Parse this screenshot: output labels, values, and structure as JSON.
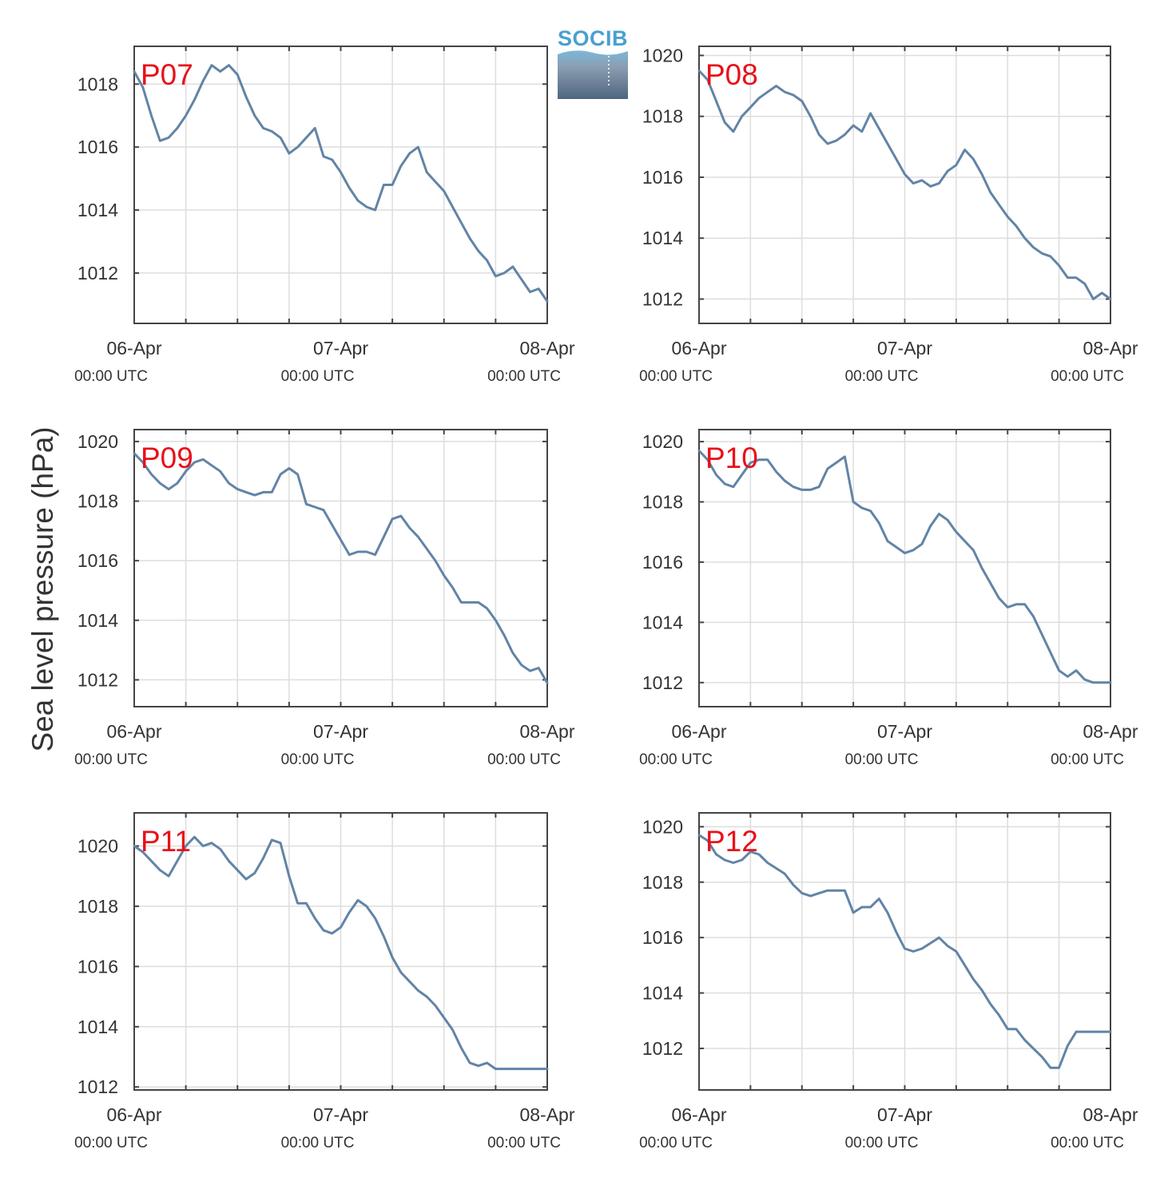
{
  "figure": {
    "ylabel": "Sea level pressure (hPa)",
    "logo_text": "SOCIB"
  },
  "colors": {
    "series": "#6284a6",
    "panel_label": "#e8101a",
    "grid": "#dddddd",
    "axes": "#444444",
    "text": "#333333"
  },
  "chart_data": [
    {
      "type": "line",
      "label": "P07",
      "x": [
        "06-Apr 00:00",
        "06-Apr 01:00",
        "06-Apr 02:00",
        "06-Apr 03:00",
        "06-Apr 04:00",
        "06-Apr 05:00",
        "06-Apr 06:00",
        "06-Apr 07:00",
        "06-Apr 08:00",
        "06-Apr 09:00",
        "06-Apr 10:00",
        "06-Apr 11:00",
        "06-Apr 12:00",
        "06-Apr 13:00",
        "06-Apr 14:00",
        "06-Apr 15:00",
        "06-Apr 16:00",
        "06-Apr 17:00",
        "06-Apr 18:00",
        "06-Apr 19:00",
        "06-Apr 20:00",
        "06-Apr 21:00",
        "06-Apr 22:00",
        "06-Apr 23:00",
        "07-Apr 00:00",
        "07-Apr 01:00",
        "07-Apr 02:00",
        "07-Apr 03:00",
        "07-Apr 04:00",
        "07-Apr 05:00",
        "07-Apr 06:00",
        "07-Apr 07:00",
        "07-Apr 08:00",
        "07-Apr 09:00",
        "07-Apr 10:00",
        "07-Apr 11:00",
        "07-Apr 12:00",
        "07-Apr 13:00",
        "07-Apr 14:00",
        "07-Apr 15:00",
        "07-Apr 16:00",
        "07-Apr 17:00",
        "07-Apr 18:00",
        "07-Apr 19:00",
        "07-Apr 20:00",
        "07-Apr 21:00",
        "07-Apr 22:00",
        "07-Apr 23:00",
        "08-Apr 00:00"
      ],
      "y": [
        1018.4,
        1017.9,
        1017.0,
        1016.2,
        1016.3,
        1016.6,
        1017.0,
        1017.5,
        1018.1,
        1018.6,
        1018.4,
        1018.6,
        1018.3,
        1017.6,
        1017.0,
        1016.6,
        1016.5,
        1016.3,
        1015.8,
        1016.0,
        1016.3,
        1016.6,
        1015.7,
        1015.6,
        1015.2,
        1014.7,
        1014.3,
        1014.1,
        1014.0,
        1014.8,
        1014.8,
        1015.4,
        1015.8,
        1016.0,
        1015.2,
        1014.9,
        1014.6,
        1014.1,
        1013.6,
        1013.1,
        1012.7,
        1012.4,
        1011.9,
        1012.0,
        1012.2,
        1011.8,
        1011.4,
        1011.5,
        1011.1
      ],
      "ylim": [
        1010.4,
        1019.2
      ],
      "yticks": [
        "1012",
        "1014",
        "1016",
        "1018"
      ],
      "xticks": [
        {
          "date": "06-Apr",
          "time": "00:00 UTC"
        },
        {
          "date": "07-Apr",
          "time": "00:00 UTC"
        },
        {
          "date": "08-Apr",
          "time": "00:00 UTC"
        }
      ],
      "grid": true
    },
    {
      "type": "line",
      "label": "P08",
      "x": [
        "06-Apr 00:00",
        "06-Apr 01:00",
        "06-Apr 02:00",
        "06-Apr 03:00",
        "06-Apr 04:00",
        "06-Apr 05:00",
        "06-Apr 06:00",
        "06-Apr 07:00",
        "06-Apr 08:00",
        "06-Apr 09:00",
        "06-Apr 10:00",
        "06-Apr 11:00",
        "06-Apr 12:00",
        "06-Apr 13:00",
        "06-Apr 14:00",
        "06-Apr 15:00",
        "06-Apr 16:00",
        "06-Apr 17:00",
        "06-Apr 18:00",
        "06-Apr 19:00",
        "06-Apr 20:00",
        "06-Apr 21:00",
        "06-Apr 22:00",
        "06-Apr 23:00",
        "07-Apr 00:00",
        "07-Apr 01:00",
        "07-Apr 02:00",
        "07-Apr 03:00",
        "07-Apr 04:00",
        "07-Apr 05:00",
        "07-Apr 06:00",
        "07-Apr 07:00",
        "07-Apr 08:00",
        "07-Apr 09:00",
        "07-Apr 10:00",
        "07-Apr 11:00",
        "07-Apr 12:00",
        "07-Apr 13:00",
        "07-Apr 14:00",
        "07-Apr 15:00",
        "07-Apr 16:00",
        "07-Apr 17:00",
        "07-Apr 18:00",
        "07-Apr 19:00",
        "07-Apr 20:00",
        "07-Apr 21:00",
        "07-Apr 22:00",
        "07-Apr 23:00",
        "08-Apr 00:00"
      ],
      "y": [
        1019.5,
        1019.2,
        1018.5,
        1017.8,
        1017.5,
        1018.0,
        1018.3,
        1018.6,
        1018.8,
        1019.0,
        1018.8,
        1018.7,
        1018.5,
        1018.0,
        1017.4,
        1017.1,
        1017.2,
        1017.4,
        1017.7,
        1017.5,
        1018.1,
        1017.6,
        1017.1,
        1016.6,
        1016.1,
        1015.8,
        1015.9,
        1015.7,
        1015.8,
        1016.2,
        1016.4,
        1016.9,
        1016.6,
        1016.1,
        1015.5,
        1015.1,
        1014.7,
        1014.4,
        1014.0,
        1013.7,
        1013.5,
        1013.4,
        1013.1,
        1012.7,
        1012.7,
        1012.5,
        1012.0,
        1012.2,
        1012.0
      ],
      "ylim": [
        1011.2,
        1020.3
      ],
      "yticks": [
        "1012",
        "1014",
        "1016",
        "1018",
        "1020"
      ],
      "xticks": [
        {
          "date": "06-Apr",
          "time": "00:00 UTC"
        },
        {
          "date": "07-Apr",
          "time": "00:00 UTC"
        },
        {
          "date": "08-Apr",
          "time": "00:00 UTC"
        }
      ],
      "grid": true
    },
    {
      "type": "line",
      "label": "P09",
      "x": [
        "06-Apr 00:00",
        "06-Apr 01:00",
        "06-Apr 02:00",
        "06-Apr 03:00",
        "06-Apr 04:00",
        "06-Apr 05:00",
        "06-Apr 06:00",
        "06-Apr 07:00",
        "06-Apr 08:00",
        "06-Apr 09:00",
        "06-Apr 10:00",
        "06-Apr 11:00",
        "06-Apr 12:00",
        "06-Apr 13:00",
        "06-Apr 14:00",
        "06-Apr 15:00",
        "06-Apr 16:00",
        "06-Apr 17:00",
        "06-Apr 18:00",
        "06-Apr 19:00",
        "06-Apr 20:00",
        "06-Apr 21:00",
        "06-Apr 22:00",
        "06-Apr 23:00",
        "07-Apr 00:00",
        "07-Apr 01:00",
        "07-Apr 02:00",
        "07-Apr 03:00",
        "07-Apr 04:00",
        "07-Apr 05:00",
        "07-Apr 06:00",
        "07-Apr 07:00",
        "07-Apr 08:00",
        "07-Apr 09:00",
        "07-Apr 10:00",
        "07-Apr 11:00",
        "07-Apr 12:00",
        "07-Apr 13:00",
        "07-Apr 14:00",
        "07-Apr 15:00",
        "07-Apr 16:00",
        "07-Apr 17:00",
        "07-Apr 18:00",
        "07-Apr 19:00",
        "07-Apr 20:00",
        "07-Apr 21:00",
        "07-Apr 22:00",
        "07-Apr 23:00",
        "08-Apr 00:00"
      ],
      "y": [
        1019.6,
        1019.3,
        1018.9,
        1018.6,
        1018.4,
        1018.6,
        1019.0,
        1019.3,
        1019.4,
        1019.2,
        1019.0,
        1018.6,
        1018.4,
        1018.3,
        1018.2,
        1018.3,
        1018.3,
        1018.9,
        1019.1,
        1018.9,
        1017.9,
        1017.8,
        1017.7,
        1017.2,
        1016.7,
        1016.2,
        1016.3,
        1016.3,
        1016.2,
        1016.8,
        1017.4,
        1017.5,
        1017.1,
        1016.8,
        1016.4,
        1016.0,
        1015.5,
        1015.1,
        1014.6,
        1014.6,
        1014.6,
        1014.4,
        1014.0,
        1013.5,
        1012.9,
        1012.5,
        1012.3,
        1012.4,
        1011.9
      ],
      "ylim": [
        1011.1,
        1020.4
      ],
      "yticks": [
        "1012",
        "1014",
        "1016",
        "1018",
        "1020"
      ],
      "xticks": [
        {
          "date": "06-Apr",
          "time": "00:00 UTC"
        },
        {
          "date": "07-Apr",
          "time": "00:00 UTC"
        },
        {
          "date": "08-Apr",
          "time": "00:00 UTC"
        }
      ],
      "grid": true
    },
    {
      "type": "line",
      "label": "P10",
      "x": [
        "06-Apr 00:00",
        "06-Apr 01:00",
        "06-Apr 02:00",
        "06-Apr 03:00",
        "06-Apr 04:00",
        "06-Apr 05:00",
        "06-Apr 06:00",
        "06-Apr 07:00",
        "06-Apr 08:00",
        "06-Apr 09:00",
        "06-Apr 10:00",
        "06-Apr 11:00",
        "06-Apr 12:00",
        "06-Apr 13:00",
        "06-Apr 14:00",
        "06-Apr 15:00",
        "06-Apr 16:00",
        "06-Apr 17:00",
        "06-Apr 18:00",
        "06-Apr 19:00",
        "06-Apr 20:00",
        "06-Apr 21:00",
        "06-Apr 22:00",
        "06-Apr 23:00",
        "07-Apr 00:00",
        "07-Apr 01:00",
        "07-Apr 02:00",
        "07-Apr 03:00",
        "07-Apr 04:00",
        "07-Apr 05:00",
        "07-Apr 06:00",
        "07-Apr 07:00",
        "07-Apr 08:00",
        "07-Apr 09:00",
        "07-Apr 10:00",
        "07-Apr 11:00",
        "07-Apr 12:00",
        "07-Apr 13:00",
        "07-Apr 14:00",
        "07-Apr 15:00",
        "07-Apr 16:00",
        "07-Apr 17:00",
        "07-Apr 18:00",
        "07-Apr 19:00",
        "07-Apr 20:00",
        "07-Apr 21:00",
        "07-Apr 22:00",
        "07-Apr 23:00",
        "08-Apr 00:00"
      ],
      "y": [
        1019.7,
        1019.4,
        1018.9,
        1018.6,
        1018.5,
        1018.9,
        1019.3,
        1019.4,
        1019.4,
        1019.0,
        1018.7,
        1018.5,
        1018.4,
        1018.4,
        1018.5,
        1019.1,
        1019.3,
        1019.5,
        1018.0,
        1017.8,
        1017.7,
        1017.3,
        1016.7,
        1016.5,
        1016.3,
        1016.4,
        1016.6,
        1017.2,
        1017.6,
        1017.4,
        1017.0,
        1016.7,
        1016.4,
        1015.8,
        1015.3,
        1014.8,
        1014.5,
        1014.6,
        1014.6,
        1014.2,
        1013.6,
        1013.0,
        1012.4,
        1012.2,
        1012.4,
        1012.1,
        1012.0,
        1012.0,
        1012.0
      ],
      "ylim": [
        1011.2,
        1020.4
      ],
      "yticks": [
        "1012",
        "1014",
        "1016",
        "1018",
        "1020"
      ],
      "xticks": [
        {
          "date": "06-Apr",
          "time": "00:00 UTC"
        },
        {
          "date": "07-Apr",
          "time": "00:00 UTC"
        },
        {
          "date": "08-Apr",
          "time": "00:00 UTC"
        }
      ],
      "grid": true
    },
    {
      "type": "line",
      "label": "P11",
      "x": [
        "06-Apr 00:00",
        "06-Apr 01:00",
        "06-Apr 02:00",
        "06-Apr 03:00",
        "06-Apr 04:00",
        "06-Apr 05:00",
        "06-Apr 06:00",
        "06-Apr 07:00",
        "06-Apr 08:00",
        "06-Apr 09:00",
        "06-Apr 10:00",
        "06-Apr 11:00",
        "06-Apr 12:00",
        "06-Apr 13:00",
        "06-Apr 14:00",
        "06-Apr 15:00",
        "06-Apr 16:00",
        "06-Apr 17:00",
        "06-Apr 18:00",
        "06-Apr 19:00",
        "06-Apr 20:00",
        "06-Apr 21:00",
        "06-Apr 22:00",
        "06-Apr 23:00",
        "07-Apr 00:00",
        "07-Apr 01:00",
        "07-Apr 02:00",
        "07-Apr 03:00",
        "07-Apr 04:00",
        "07-Apr 05:00",
        "07-Apr 06:00",
        "07-Apr 07:00",
        "07-Apr 08:00",
        "07-Apr 09:00",
        "07-Apr 10:00",
        "07-Apr 11:00",
        "07-Apr 12:00",
        "07-Apr 13:00",
        "07-Apr 14:00",
        "07-Apr 15:00",
        "07-Apr 16:00",
        "07-Apr 17:00",
        "07-Apr 18:00",
        "07-Apr 19:00",
        "07-Apr 20:00",
        "07-Apr 21:00",
        "07-Apr 22:00",
        "07-Apr 23:00",
        "08-Apr 00:00"
      ],
      "y": [
        1020.0,
        1019.8,
        1019.5,
        1019.2,
        1019.0,
        1019.5,
        1020.0,
        1020.3,
        1020.0,
        1020.1,
        1019.9,
        1019.5,
        1019.2,
        1018.9,
        1019.1,
        1019.6,
        1020.2,
        1020.1,
        1019.0,
        1018.1,
        1018.1,
        1017.6,
        1017.2,
        1017.1,
        1017.3,
        1017.8,
        1018.2,
        1018.0,
        1017.6,
        1017.0,
        1016.3,
        1015.8,
        1015.5,
        1015.2,
        1015.0,
        1014.7,
        1014.3,
        1013.9,
        1013.3,
        1012.8,
        1012.7,
        1012.8,
        1012.6,
        1012.6,
        1012.6,
        1012.6,
        1012.6,
        1012.6,
        1012.6
      ],
      "ylim": [
        1011.9,
        1021.1
      ],
      "yticks": [
        "1012",
        "1014",
        "1016",
        "1018",
        "1020"
      ],
      "xticks": [
        {
          "date": "06-Apr",
          "time": "00:00 UTC"
        },
        {
          "date": "07-Apr",
          "time": "00:00 UTC"
        },
        {
          "date": "08-Apr",
          "time": "00:00 UTC"
        }
      ],
      "grid": true
    },
    {
      "type": "line",
      "label": "P12",
      "x": [
        "06-Apr 00:00",
        "06-Apr 01:00",
        "06-Apr 02:00",
        "06-Apr 03:00",
        "06-Apr 04:00",
        "06-Apr 05:00",
        "06-Apr 06:00",
        "06-Apr 07:00",
        "06-Apr 08:00",
        "06-Apr 09:00",
        "06-Apr 10:00",
        "06-Apr 11:00",
        "06-Apr 12:00",
        "06-Apr 13:00",
        "06-Apr 14:00",
        "06-Apr 15:00",
        "06-Apr 16:00",
        "06-Apr 17:00",
        "06-Apr 18:00",
        "06-Apr 19:00",
        "06-Apr 20:00",
        "06-Apr 21:00",
        "06-Apr 22:00",
        "06-Apr 23:00",
        "07-Apr 00:00",
        "07-Apr 01:00",
        "07-Apr 02:00",
        "07-Apr 03:00",
        "07-Apr 04:00",
        "07-Apr 05:00",
        "07-Apr 06:00",
        "07-Apr 07:00",
        "07-Apr 08:00",
        "07-Apr 09:00",
        "07-Apr 10:00",
        "07-Apr 11:00",
        "07-Apr 12:00",
        "07-Apr 13:00",
        "07-Apr 14:00",
        "07-Apr 15:00",
        "07-Apr 16:00",
        "07-Apr 17:00",
        "07-Apr 18:00",
        "07-Apr 19:00",
        "07-Apr 20:00",
        "07-Apr 21:00",
        "07-Apr 22:00",
        "07-Apr 23:00",
        "08-Apr 00:00"
      ],
      "y": [
        1019.7,
        1019.5,
        1019.0,
        1018.8,
        1018.7,
        1018.8,
        1019.1,
        1019.0,
        1018.7,
        1018.5,
        1018.3,
        1017.9,
        1017.6,
        1017.5,
        1017.6,
        1017.7,
        1017.7,
        1017.7,
        1016.9,
        1017.1,
        1017.1,
        1017.4,
        1016.9,
        1016.2,
        1015.6,
        1015.5,
        1015.6,
        1015.8,
        1016.0,
        1015.7,
        1015.5,
        1015.0,
        1014.5,
        1014.1,
        1013.6,
        1013.2,
        1012.7,
        1012.7,
        1012.3,
        1012.0,
        1011.7,
        1011.3,
        1011.3,
        1012.1,
        1012.6,
        1012.6,
        1012.6,
        1012.6,
        1012.6
      ],
      "ylim": [
        1010.5,
        1020.5
      ],
      "yticks": [
        "1012",
        "1014",
        "1016",
        "1018",
        "1020"
      ],
      "xticks": [
        {
          "date": "06-Apr",
          "time": "00:00 UTC"
        },
        {
          "date": "07-Apr",
          "time": "00:00 UTC"
        },
        {
          "date": "08-Apr",
          "time": "00:00 UTC"
        }
      ],
      "grid": true
    }
  ]
}
